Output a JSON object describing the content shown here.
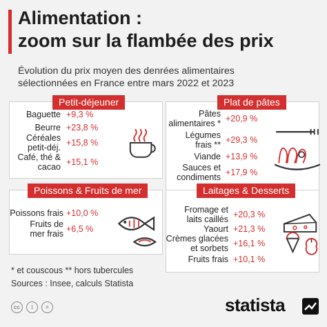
{
  "title_line1": "Alimentation :",
  "title_line2": "zoom sur la flambée des prix",
  "subtitle_line1": "Évolution du prix moyen des denrées alimentaires",
  "subtitle_line2": "sélectionnées en France entre mars 2022 et 2023",
  "chart_data": [
    {
      "type": "table",
      "title": "Petit-déjeuner",
      "categories": [
        "Baguette",
        "Beurre",
        "Céréales petit-déj.",
        "Café, thé & cacao"
      ],
      "labels": [
        "Baguette",
        "Beurre",
        "Céréales\npetit-déj.",
        "Café, thé &\ncacao"
      ],
      "values": [
        9.3,
        23.8,
        15.8,
        15.1
      ],
      "value_labels": [
        "+9,3 %",
        "+23,8 %",
        "+15,8 %",
        "+15,1 %"
      ]
    },
    {
      "type": "table",
      "title": "Plat de pâtes",
      "categories": [
        "Pâtes alimentaires *",
        "Légumes frais **",
        "Viande",
        "Sauces et condiments"
      ],
      "labels": [
        "Pâtes\nalimentaires *",
        "Légumes\nfrais **",
        "Viande",
        "Sauces et\ncondiments"
      ],
      "values": [
        20.9,
        29.3,
        13.9,
        17.9
      ],
      "value_labels": [
        "+20,9 %",
        "+29,3 %",
        "+13,9 %",
        "+17,9 %"
      ]
    },
    {
      "type": "table",
      "title": "Poissons & Fruits de mer",
      "categories": [
        "Poissons frais",
        "Fruits de mer frais"
      ],
      "labels": [
        "Poissons frais",
        "Fruits de\nmer frais"
      ],
      "values": [
        10.0,
        6.5
      ],
      "value_labels": [
        "+10,0 %",
        "+6,5 %"
      ]
    },
    {
      "type": "table",
      "title": "Laitages & Desserts",
      "categories": [
        "Fromage et laits caillés",
        "Yaourt",
        "Crèmes glacées et sorbets",
        "Fruits frais"
      ],
      "labels": [
        "Fromage et\nlaits caillés",
        "Yaourt",
        "Crèmes glacées\net sorbets",
        "Fruits frais"
      ],
      "values": [
        20.3,
        21.3,
        16.1,
        10.1
      ],
      "value_labels": [
        "+20,3 %",
        "+21,3 %",
        "+16,1 %",
        "+10,1 %"
      ]
    }
  ],
  "footnote": "* et couscous    ** hors tubercules",
  "sources": "Sources : Insee, calculs Statista",
  "license_icons": [
    "creative-commons-icon",
    "attribution-icon",
    "no-derivatives-icon"
  ],
  "license_glyphs": [
    "cc",
    "i",
    "="
  ],
  "brand": "statista",
  "colors": {
    "accent": "#d32f2f",
    "value": "#d32f2f",
    "background": "#f2f2f2",
    "panel": "#ffffff",
    "brand": "#111111"
  }
}
